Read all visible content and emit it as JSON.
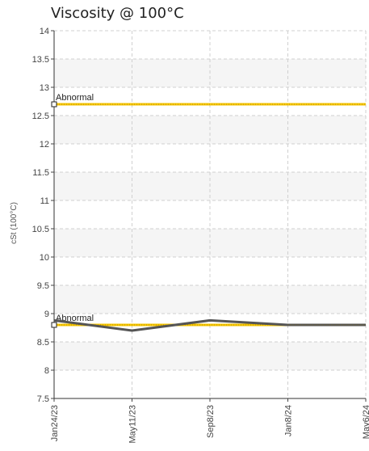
{
  "chart_data": {
    "type": "line",
    "title": "Viscosity @ 100°C",
    "ylabel": "cSt (100°C)",
    "xlabel": "",
    "categories": [
      "Jan24/23",
      "May11/23",
      "Sep8/23",
      "Jan8/24",
      "May6/24"
    ],
    "yticks": [
      "7.5",
      "8",
      "8.5",
      "9",
      "9.5",
      "10",
      "10.5",
      "11",
      "11.5",
      "12",
      "12.5",
      "13",
      "13.5",
      "14"
    ],
    "ylim": [
      7.5,
      14
    ],
    "grid": true,
    "series": [
      {
        "values": [
          8.88,
          8.7,
          8.88,
          8.8,
          8.8
        ],
        "color": "#555555"
      }
    ],
    "limits": [
      {
        "label": "Abnormal",
        "value": 12.7,
        "color": "#f5c400"
      },
      {
        "label": "Abnormal",
        "value": 8.8,
        "color": "#f5c400"
      }
    ]
  }
}
